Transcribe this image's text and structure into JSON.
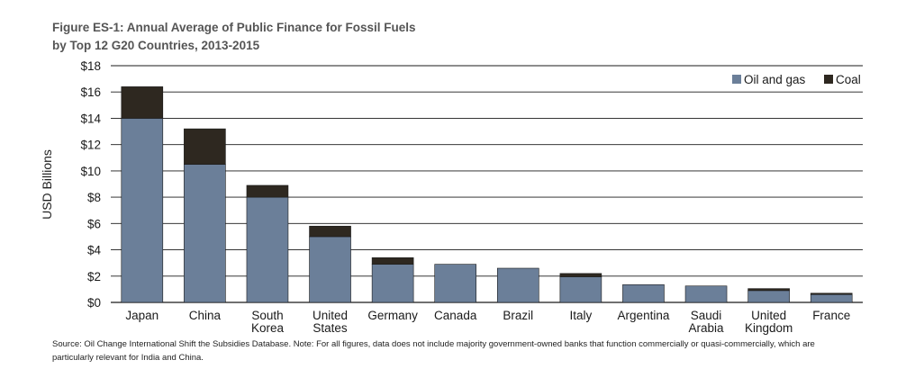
{
  "chart_data": {
    "type": "bar",
    "stacked": true,
    "title_line1": "Figure ES-1: Annual Average of Public Finance for Fossil Fuels",
    "title_line2": "by Top 12 G20 Countries, 2013-2015",
    "ylabel": "USD Billions",
    "ylim": [
      0,
      18
    ],
    "yticks": [
      "$0",
      "$2",
      "$4",
      "$6",
      "$8",
      "$10",
      "$12",
      "$14",
      "$16",
      "$18"
    ],
    "ytick_values": [
      0,
      2,
      4,
      6,
      8,
      10,
      12,
      14,
      16,
      18
    ],
    "categories": [
      [
        "Japan"
      ],
      [
        "China"
      ],
      [
        "South",
        "Korea"
      ],
      [
        "United",
        "States"
      ],
      [
        "Germany"
      ],
      [
        "Canada"
      ],
      [
        "Brazil"
      ],
      [
        "Italy"
      ],
      [
        "Argentina"
      ],
      [
        "Saudi",
        "Arabia"
      ],
      [
        "United",
        "Kingdom"
      ],
      [
        "France"
      ]
    ],
    "series": [
      {
        "name": "Oil and gas",
        "color": "#6b7f99",
        "values": [
          14.0,
          10.5,
          8.0,
          5.0,
          2.9,
          2.9,
          2.6,
          1.95,
          1.35,
          1.25,
          0.9,
          0.6
        ]
      },
      {
        "name": "Coal",
        "color": "#2e2820",
        "values": [
          2.4,
          2.7,
          0.9,
          0.8,
          0.5,
          0.0,
          0.0,
          0.25,
          0.0,
          0.0,
          0.15,
          0.1
        ]
      }
    ],
    "grid": true,
    "legend_position": "top-right"
  },
  "source_note": "Source: Oil Change International Shift the Subsidies Database. Note: For all figures, data does not include majority government-owned banks that function commercially or quasi-commercially, which are particularly relevant for India and China."
}
